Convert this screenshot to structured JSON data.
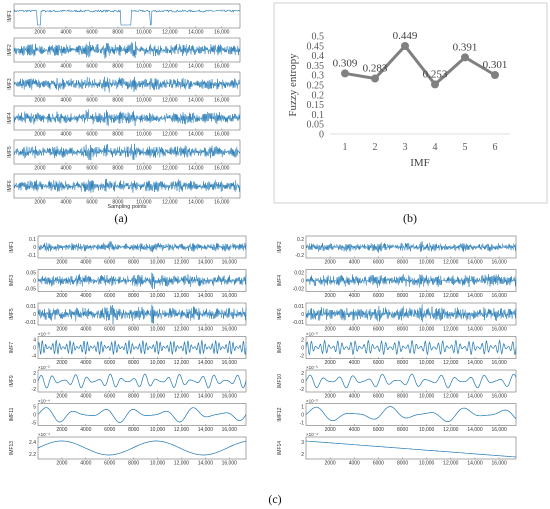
{
  "figure_labels": {
    "a": "(a)",
    "b": "(b)",
    "c": "(c)"
  },
  "chart_data": [
    {
      "id": "a",
      "type": "line",
      "series": [
        {
          "name": "IMF1"
        },
        {
          "name": "IMF2"
        },
        {
          "name": "IMF3"
        },
        {
          "name": "IMF4"
        },
        {
          "name": "IMF5"
        },
        {
          "name": "IMF6"
        }
      ],
      "x_ticks": [
        "2000",
        "4000",
        "6000",
        "8000",
        "10,000",
        "12,000",
        "14,000",
        "16,000"
      ],
      "xlabel": "Sampling points",
      "xlim": [
        0,
        17400
      ]
    },
    {
      "id": "b",
      "type": "line",
      "categories": [
        "1",
        "2",
        "3",
        "4",
        "5",
        "6"
      ],
      "values": [
        0.309,
        0.283,
        0.449,
        0.253,
        0.391,
        0.301
      ],
      "data_labels": [
        "0.309",
        "0.283",
        "0.449",
        "0.253",
        "0.391",
        "0.301"
      ],
      "y_ticks": [
        "0",
        "0.05",
        "0.1",
        "0.15",
        "0.2",
        "0.25",
        "0.3",
        "0.35",
        "0.4",
        "0.45",
        "0.5"
      ],
      "ylim": [
        0,
        0.5
      ],
      "xlabel": "IMF",
      "ylabel": "Fuzzy entropy",
      "color": "#808080"
    },
    {
      "id": "c",
      "type": "line",
      "x_ticks": [
        "2000",
        "4000",
        "6000",
        "8000",
        "10,000",
        "12,000",
        "14,000",
        "16,000"
      ],
      "xlim": [
        0,
        17400
      ],
      "series": [
        {
          "name": "IMF1",
          "y_ticks": [
            "0.1",
            "0",
            "-0.1"
          ]
        },
        {
          "name": "IMF2",
          "y_ticks": [
            "0.2",
            "0",
            "-0.2"
          ]
        },
        {
          "name": "IMF3",
          "y_ticks": [
            "0.05",
            "0",
            "-0.05"
          ]
        },
        {
          "name": "IMF4",
          "y_ticks": [
            "0.02",
            "0",
            "-0.02"
          ]
        },
        {
          "name": "IMF5",
          "y_ticks": [
            "0.01",
            "0",
            "-0.01"
          ]
        },
        {
          "name": "IMF6",
          "y_ticks": [
            "0.01",
            "0",
            "-0.01"
          ]
        },
        {
          "name": "IMF7",
          "y_ticks": [
            "4",
            "0",
            "-4"
          ],
          "exponent": "×10⁻³"
        },
        {
          "name": "IMF8",
          "y_ticks": [
            "2",
            "0",
            "-2"
          ],
          "exponent": "×10⁻³"
        },
        {
          "name": "IMF9",
          "y_ticks": [
            "2",
            "0",
            "-2"
          ],
          "exponent": "×10⁻³"
        },
        {
          "name": "IMF10",
          "y_ticks": [
            "2",
            "0",
            "-2"
          ],
          "exponent": "×10⁻³"
        },
        {
          "name": "IMF11",
          "y_ticks": [
            "5",
            "0",
            "-5"
          ],
          "exponent": "×10⁻⁴"
        },
        {
          "name": "IMF12",
          "y_ticks": [
            "1",
            "0",
            "-1"
          ],
          "exponent": "×10⁻³"
        },
        {
          "name": "IMF13",
          "y_ticks": [
            "2.4",
            "2.2"
          ],
          "exponent": "×10⁻⁴"
        },
        {
          "name": "IMF14",
          "y_ticks": [
            "3",
            "2"
          ],
          "exponent": "×10⁻⁴"
        }
      ]
    }
  ],
  "colors": {
    "signal": "#1f77b4",
    "entropy_line": "#808080",
    "axis": "#555555"
  }
}
